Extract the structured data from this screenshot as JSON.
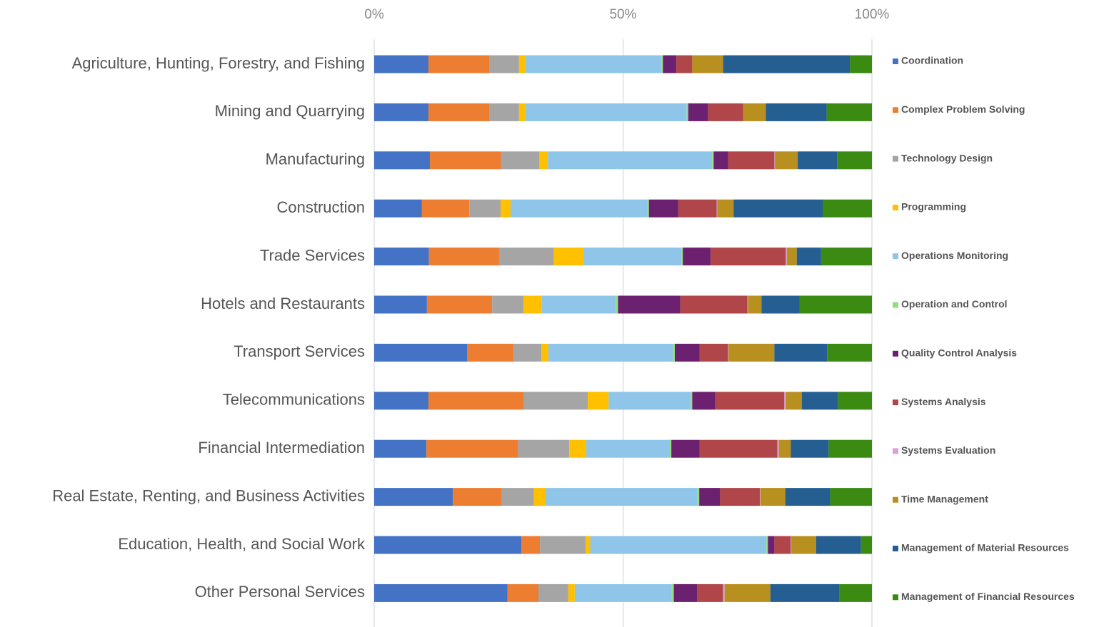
{
  "chart_data": {
    "type": "bar",
    "orientation": "horizontal",
    "stacked": true,
    "grid": true,
    "legend": "right",
    "categories": [
      "Agriculture, Hunting, Forestry, and Fishing",
      "Mining and Quarrying",
      "Manufacturing",
      "Construction",
      "Trade Services",
      "Hotels and Restaurants",
      "Transport Services",
      "Telecommunications",
      "Financial Intermediation",
      "Real Estate, Renting, and Business Activities",
      "Education, Health, and Social Work",
      "Other Personal Services"
    ],
    "xlim": [
      0,
      100
    ],
    "xticks": [
      {
        "value": 0,
        "label": "0%"
      },
      {
        "value": 50,
        "label": "50%"
      },
      {
        "value": 100,
        "label": "100%"
      }
    ],
    "series": [
      {
        "name": "Coordination",
        "color": "#4472c4",
        "values": [
          10.9,
          10.9,
          11.2,
          9.6,
          11.0,
          10.6,
          18.7,
          10.9,
          10.5,
          15.8,
          29.6,
          26.8
        ]
      },
      {
        "name": "Complex Problem Solving",
        "color": "#ed7d31",
        "values": [
          12.3,
          12.3,
          14.3,
          9.5,
          14.1,
          13.1,
          9.3,
          19.2,
          18.4,
          9.8,
          3.7,
          6.2
        ]
      },
      {
        "name": "Technology Design",
        "color": "#a5a5a5",
        "values": [
          5.9,
          5.9,
          7.7,
          6.3,
          11.0,
          6.3,
          5.6,
          12.8,
          10.3,
          6.5,
          9.2,
          6.0
        ]
      },
      {
        "name": "Programming",
        "color": "#ffc000",
        "values": [
          1.3,
          1.3,
          1.7,
          2.0,
          6.0,
          3.7,
          1.4,
          4.2,
          3.4,
          2.2,
          0.9,
          1.3
        ]
      },
      {
        "name": "Operations Monitoring",
        "color": "#8ec5e8",
        "values": [
          27.3,
          32.4,
          33.0,
          27.5,
          19.7,
          14.9,
          25.0,
          16.5,
          16.8,
          30.6,
          35.4,
          19.5
        ]
      },
      {
        "name": "Operation and Control",
        "color": "#8fe07d",
        "values": [
          0.3,
          0.3,
          0.3,
          0.3,
          0.2,
          0.4,
          0.4,
          0.3,
          0.3,
          0.4,
          0.3,
          0.4
        ]
      },
      {
        "name": "Quality Control Analysis",
        "color": "#6b216f",
        "values": [
          2.7,
          4.0,
          2.9,
          5.9,
          5.6,
          12.5,
          5.0,
          4.6,
          5.7,
          4.2,
          1.3,
          4.7
        ]
      },
      {
        "name": "Systems Analysis",
        "color": "#b0464a",
        "values": [
          3.2,
          7.0,
          9.3,
          7.7,
          15.1,
          13.5,
          5.7,
          13.9,
          15.6,
          8.0,
          3.3,
          5.2
        ]
      },
      {
        "name": "Systems Evaluation",
        "color": "#d9a0d9",
        "values": [
          0,
          0,
          0.1,
          0.1,
          0.2,
          0.1,
          0.1,
          0.3,
          0.3,
          0.1,
          0.1,
          0.3
        ]
      },
      {
        "name": "Time Management",
        "color": "#b8901f",
        "values": [
          6.2,
          4.6,
          4.6,
          3.3,
          2.0,
          2.7,
          9.2,
          3.2,
          2.4,
          5.0,
          5.0,
          9.2
        ]
      },
      {
        "name": "Management of Material Resources",
        "color": "#255e91",
        "values": [
          25.5,
          12.2,
          7.9,
          17.9,
          4.9,
          7.7,
          10.6,
          7.3,
          7.6,
          9.0,
          9.0,
          13.9
        ]
      },
      {
        "name": "Management of Financial Resources",
        "color": "#3b8a12",
        "values": [
          4.4,
          9.1,
          7.0,
          9.9,
          10.2,
          14.5,
          9.0,
          6.8,
          8.7,
          8.4,
          2.2,
          6.5
        ]
      }
    ]
  }
}
